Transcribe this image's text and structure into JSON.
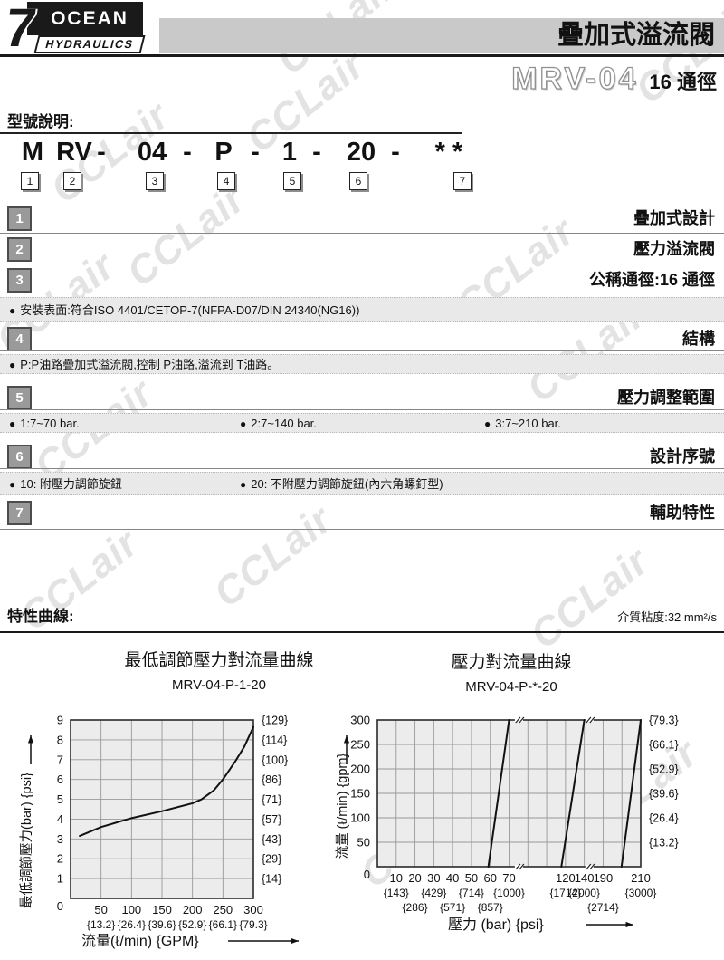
{
  "header": {
    "logo": {
      "seven": "7",
      "ocean": "OCEAN",
      "hydraulics": "HYDRAULICS"
    },
    "title": "疊加式溢流閥",
    "model": "MRV-04",
    "bore": "16 通徑"
  },
  "model_section": {
    "heading": "型號說明:",
    "code_parts": [
      "M",
      "RV",
      "-",
      "04",
      "-",
      "P",
      "-",
      "1",
      "-",
      "20",
      "-",
      "* *"
    ],
    "position_digits": [
      "1",
      "2",
      "3",
      "4",
      "5",
      "6",
      "7"
    ]
  },
  "spec_rows": [
    {
      "num": "1",
      "title": "疊加式設計"
    },
    {
      "num": "2",
      "title": "壓力溢流閥"
    },
    {
      "num": "3",
      "title": "公稱通徑:16 通徑"
    },
    {
      "num": "4",
      "title": "結構"
    },
    {
      "num": "5",
      "title": "壓力調整範圍"
    },
    {
      "num": "6",
      "title": "設計序號"
    },
    {
      "num": "7",
      "title": "輔助特性"
    }
  ],
  "notes": {
    "mounting": "安裝表面:符合ISO 4401/CETOP-7(NFPA-D07/DIN 24340(NG16))",
    "structure": "P:P油路疊加式溢流閥,控制 P油路,溢流到 T油路。",
    "pressure_ranges": [
      "1:7~70 bar.",
      "2:7~140 bar.",
      "3:7~210 bar."
    ],
    "design_series": [
      "10: 附壓力調節旋鈕",
      "20: 不附壓力調節旋鈕(內六角螺釘型)"
    ]
  },
  "curves_section": {
    "heading": "特性曲線:",
    "viscosity": "介質粘度:32 mm²/s"
  },
  "watermark_text": "CCLair",
  "chart_data": [
    {
      "type": "line",
      "title": "最低調節壓力對流量曲線",
      "subtitle": "MRV-04-P-1-20",
      "xlabel": "流量(ℓ/min) {GPM}",
      "ylabel": "最低調節壓力(bar) {psi}",
      "xlim": [
        0,
        300
      ],
      "ylim": [
        0,
        9
      ],
      "x_ticks": [
        50,
        100,
        150,
        200,
        250,
        300
      ],
      "x_sub_labels": [
        "{13.2}",
        "{26.4}",
        "{39.6}",
        "{52.9}",
        "{66.1}",
        "{79.3}"
      ],
      "y_ticks": [
        1,
        2,
        3,
        4,
        5,
        6,
        7,
        8,
        9
      ],
      "y_right_labels": [
        "{14}",
        "{29}",
        "{43}",
        "{57}",
        "{71}",
        "{86}",
        "{100}",
        "{114}",
        "{129}"
      ],
      "origin_label": "0",
      "grid": true,
      "legend": "none",
      "series": [
        {
          "name": "minimum adjustment pressure vs flow",
          "points": [
            [
              15,
              3.15
            ],
            [
              50,
              3.6
            ],
            [
              100,
              4.05
            ],
            [
              150,
              4.4
            ],
            [
              200,
              4.8
            ],
            [
              215,
              5.0
            ],
            [
              235,
              5.45
            ],
            [
              250,
              6.0
            ],
            [
              270,
              6.9
            ],
            [
              285,
              7.65
            ],
            [
              300,
              8.65
            ]
          ]
        }
      ]
    },
    {
      "type": "line",
      "title": "壓力對流量曲線",
      "subtitle": "MRV-04-P-*-20",
      "xlabel": "壓力 (bar) {psi}",
      "ylabel": "流量 (ℓ/min) {gpm}",
      "ylim": [
        0,
        300
      ],
      "y_ticks": [
        50,
        100,
        150,
        200,
        250,
        300
      ],
      "y_right_labels": [
        "{13.2}",
        "{26.4}",
        "{39.6}",
        "{52.9}",
        "{66.1}",
        "{79.3}"
      ],
      "origin_label": "0",
      "grid": true,
      "legend": "none",
      "x_axis_broken": true,
      "x_axis": {
        "unit_cols": 14,
        "ticks": [
          {
            "col": 1,
            "label": "10"
          },
          {
            "col": 2,
            "label": "20"
          },
          {
            "col": 3,
            "label": "30"
          },
          {
            "col": 4,
            "label": "40"
          },
          {
            "col": 5,
            "label": "50"
          },
          {
            "col": 6,
            "label": "60"
          },
          {
            "col": 7,
            "label": "70"
          },
          {
            "col": 10,
            "label": "120"
          },
          {
            "col": 11,
            "label": "140"
          },
          {
            "col": 12,
            "label": "190"
          },
          {
            "col": 14,
            "label": "210"
          }
        ],
        "psi_row1": [
          {
            "col": 1,
            "label": "{143}"
          },
          {
            "col": 3,
            "label": "{429}"
          },
          {
            "col": 5,
            "label": "{714}"
          },
          {
            "col": 7,
            "label": "{1000}"
          },
          {
            "col": 10,
            "label": "{1714}"
          },
          {
            "col": 11,
            "label": "{2000}"
          },
          {
            "col": 14,
            "label": "{3000}"
          }
        ],
        "psi_row2": [
          {
            "col": 2,
            "label": "{286}"
          },
          {
            "col": 4,
            "label": "{571}"
          },
          {
            "col": 6,
            "label": "{857}"
          },
          {
            "col": 12,
            "label": "{2714}"
          }
        ],
        "breaks_col": [
          7.5,
          11.25
        ]
      },
      "series": [
        {
          "name": "pressure range 1 (7~70 bar)",
          "points_col": [
            [
              5.9,
              0
            ],
            [
              7,
              300
            ]
          ]
        },
        {
          "name": "pressure range 2 (7~140 bar)",
          "points_col": [
            [
              9.78,
              0
            ],
            [
              11,
              300
            ]
          ]
        },
        {
          "name": "pressure range 3 (7~210 bar)",
          "points_col": [
            [
              12.98,
              0
            ],
            [
              14,
              300
            ]
          ]
        }
      ]
    }
  ]
}
